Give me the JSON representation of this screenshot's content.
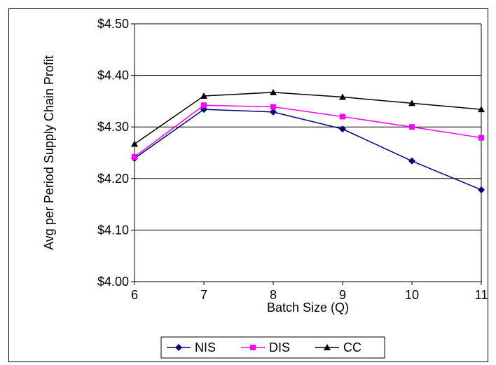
{
  "chart_data": {
    "type": "line",
    "title": "",
    "xlabel": "Batch Size (Q)",
    "ylabel": "Avg per Period Supply Chain Profit",
    "x": [
      6,
      7,
      8,
      9,
      10,
      11
    ],
    "x_tick_labels": [
      "6",
      "7",
      "8",
      "9",
      "10",
      "11"
    ],
    "ylim": [
      4.0,
      4.5
    ],
    "y_ticks": [
      4.0,
      4.1,
      4.2,
      4.3,
      4.4,
      4.5
    ],
    "y_tick_labels": [
      "$4.00",
      "$4.10",
      "$4.20",
      "$4.30",
      "$4.40",
      "$4.50"
    ],
    "grid": "horizontal",
    "legend_position": "bottom",
    "series": [
      {
        "name": "NIS",
        "color": "#000080",
        "marker": "diamond",
        "values": [
          4.239,
          4.334,
          4.329,
          4.296,
          4.234,
          4.178
        ]
      },
      {
        "name": "DIS",
        "color": "#FF00FF",
        "marker": "square",
        "values": [
          4.242,
          4.342,
          4.339,
          4.32,
          4.3,
          4.279
        ]
      },
      {
        "name": "CC",
        "color": "#000000",
        "marker": "triangle",
        "values": [
          4.267,
          4.36,
          4.367,
          4.358,
          4.346,
          4.334
        ]
      }
    ]
  }
}
